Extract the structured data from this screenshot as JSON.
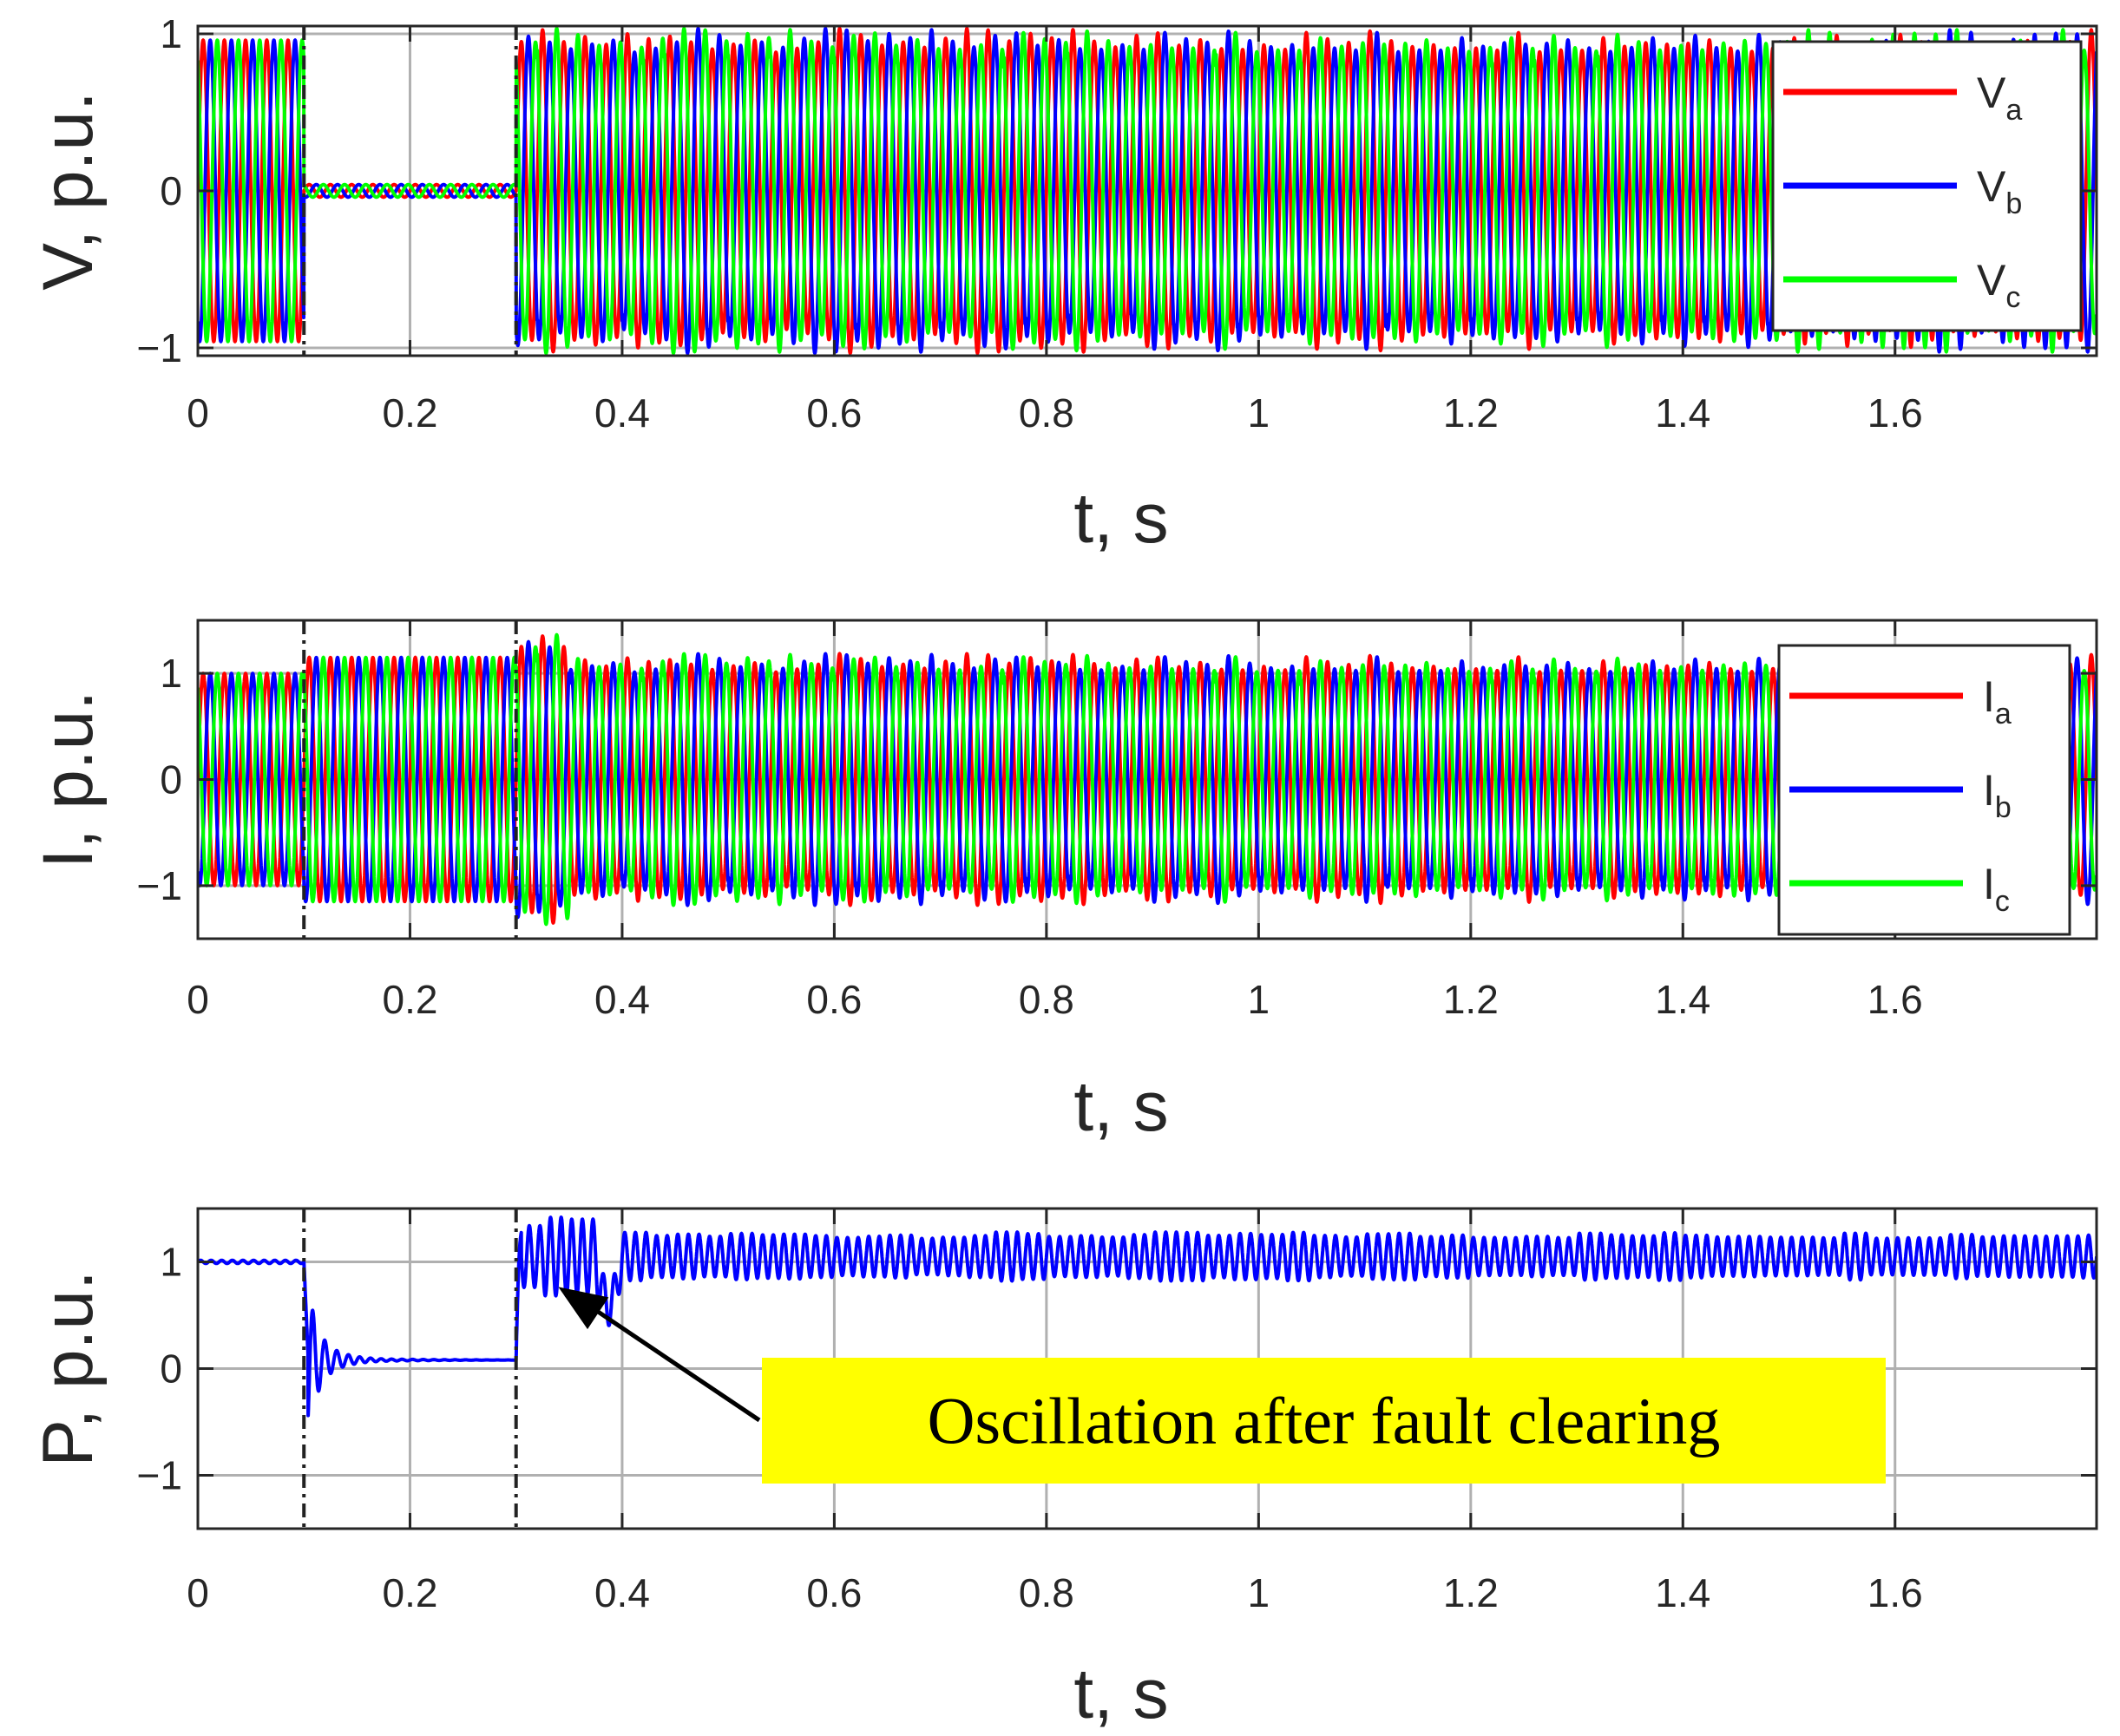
{
  "chart_data": [
    {
      "type": "line",
      "panel": "voltage",
      "xlabel": "t, s",
      "ylabel": "V, p.u.",
      "xlim": [
        0,
        1.79
      ],
      "ylim": [
        -1.05,
        1.05
      ],
      "xticks": [
        0,
        0.2,
        0.4,
        0.6,
        0.8,
        1,
        1.2,
        1.4,
        1.6
      ],
      "xtick_labels": [
        "0",
        "0.2",
        "0.4",
        "0.6",
        "0.8",
        "1",
        "1.2",
        "1.4",
        "1.6"
      ],
      "yticks": [
        -1,
        0,
        1
      ],
      "ytick_labels": [
        "−1",
        "0",
        "1"
      ],
      "grid": true,
      "legend_position": "right",
      "fault_markers": [
        0.1,
        0.3
      ],
      "series": [
        {
          "name": "V",
          "subscript": "a",
          "color": "#ff0000",
          "amplitude": 0.96,
          "phase_deg": 0,
          "fault_amplitude": 0.04,
          "post_amplitude": 0.96
        },
        {
          "name": "V",
          "subscript": "b",
          "color": "#0000ff",
          "amplitude": 0.96,
          "phase_deg": -120,
          "fault_amplitude": 0.04,
          "post_amplitude": 0.96
        },
        {
          "name": "V",
          "subscript": "c",
          "color": "#00ff00",
          "amplitude": 0.96,
          "phase_deg": 120,
          "fault_amplitude": 0.04,
          "post_amplitude": 0.96
        }
      ],
      "frequency_hz": 50
    },
    {
      "type": "line",
      "panel": "current",
      "xlabel": "t, s",
      "ylabel": "I, p.u.",
      "xlim": [
        0,
        1.79
      ],
      "ylim": [
        -1.5,
        1.5
      ],
      "xticks": [
        0,
        0.2,
        0.4,
        0.6,
        0.8,
        1,
        1.2,
        1.4,
        1.6
      ],
      "xtick_labels": [
        "0",
        "0.2",
        "0.4",
        "0.6",
        "0.8",
        "1",
        "1.2",
        "1.4",
        "1.6"
      ],
      "yticks": [
        -1,
        0,
        1
      ],
      "ytick_labels": [
        "−1",
        "0",
        "1"
      ],
      "grid": true,
      "legend_position": "right",
      "fault_markers": [
        0.1,
        0.3
      ],
      "series": [
        {
          "name": "I",
          "subscript": "a",
          "color": "#ff0000",
          "amplitude": 1.0,
          "phase_deg": 0,
          "fault_amplitude": 1.15,
          "post_amplitude": 1.1
        },
        {
          "name": "I",
          "subscript": "b",
          "color": "#0000ff",
          "amplitude": 1.0,
          "phase_deg": -120,
          "fault_amplitude": 1.15,
          "post_amplitude": 1.1
        },
        {
          "name": "I",
          "subscript": "c",
          "color": "#00ff00",
          "amplitude": 1.0,
          "phase_deg": 120,
          "fault_amplitude": 1.15,
          "post_amplitude": 1.1
        }
      ],
      "frequency_hz": 50
    },
    {
      "type": "line",
      "panel": "power",
      "xlabel": "t, s",
      "ylabel": "P, p.u.",
      "xlim": [
        0,
        1.79
      ],
      "ylim": [
        -1.5,
        1.5
      ],
      "xticks": [
        0,
        0.2,
        0.4,
        0.6,
        0.8,
        1,
        1.2,
        1.4,
        1.6
      ],
      "xtick_labels": [
        "0",
        "0.2",
        "0.4",
        "0.6",
        "0.8",
        "1",
        "1.2",
        "1.4",
        "1.6"
      ],
      "yticks": [
        -1,
        0,
        1
      ],
      "ytick_labels": [
        "−1",
        "0",
        "1"
      ],
      "grid": true,
      "fault_markers": [
        0.1,
        0.3
      ],
      "series": [
        {
          "name": "P",
          "color": "#0000ff",
          "pre_fault": 1.0,
          "during_fault": 0.08,
          "post_fault_mean": 1.05,
          "post_fault_oscillation": 0.2
        }
      ],
      "annotation": {
        "text": "Oscillation after fault clearing",
        "arrow_to": [
          0.33,
          1.05
        ],
        "box_color": "#ffff00"
      }
    }
  ]
}
